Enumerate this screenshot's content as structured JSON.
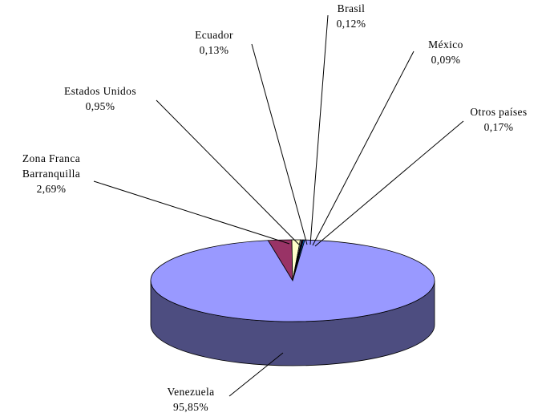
{
  "chart_data": {
    "type": "pie",
    "style": "3d",
    "series": [
      {
        "label": "Venezuela",
        "value_text": "95,85%",
        "value": 95.85,
        "color": "#9999ff",
        "side_color": "#4d4d80"
      },
      {
        "label": "Zona Franca Barranquilla",
        "label_lines": [
          "Zona Franca",
          "Barranquilla"
        ],
        "value_text": "2,69%",
        "value": 2.69,
        "color": "#993366",
        "side_color": "#4d1a33"
      },
      {
        "label": "Estados Unidos",
        "value_text": "0,95%",
        "value": 0.95,
        "color": "#ffffcc",
        "side_color": "#808066"
      },
      {
        "label": "Ecuador",
        "value_text": "0,13%",
        "value": 0.13,
        "color": "#ccffff",
        "side_color": "#668080"
      },
      {
        "label": "Brasil",
        "value_text": "0,12%",
        "value": 0.12,
        "color": "#660066",
        "side_color": "#330033"
      },
      {
        "label": "México",
        "value_text": "0,09%",
        "value": 0.09,
        "color": "#ff8080",
        "side_color": "#804040"
      },
      {
        "label": "Otros países",
        "value_text": "0,17%",
        "value": 0.17,
        "color": "#0066cc",
        "side_color": "#003366"
      }
    ],
    "title": "",
    "legend": "none"
  }
}
